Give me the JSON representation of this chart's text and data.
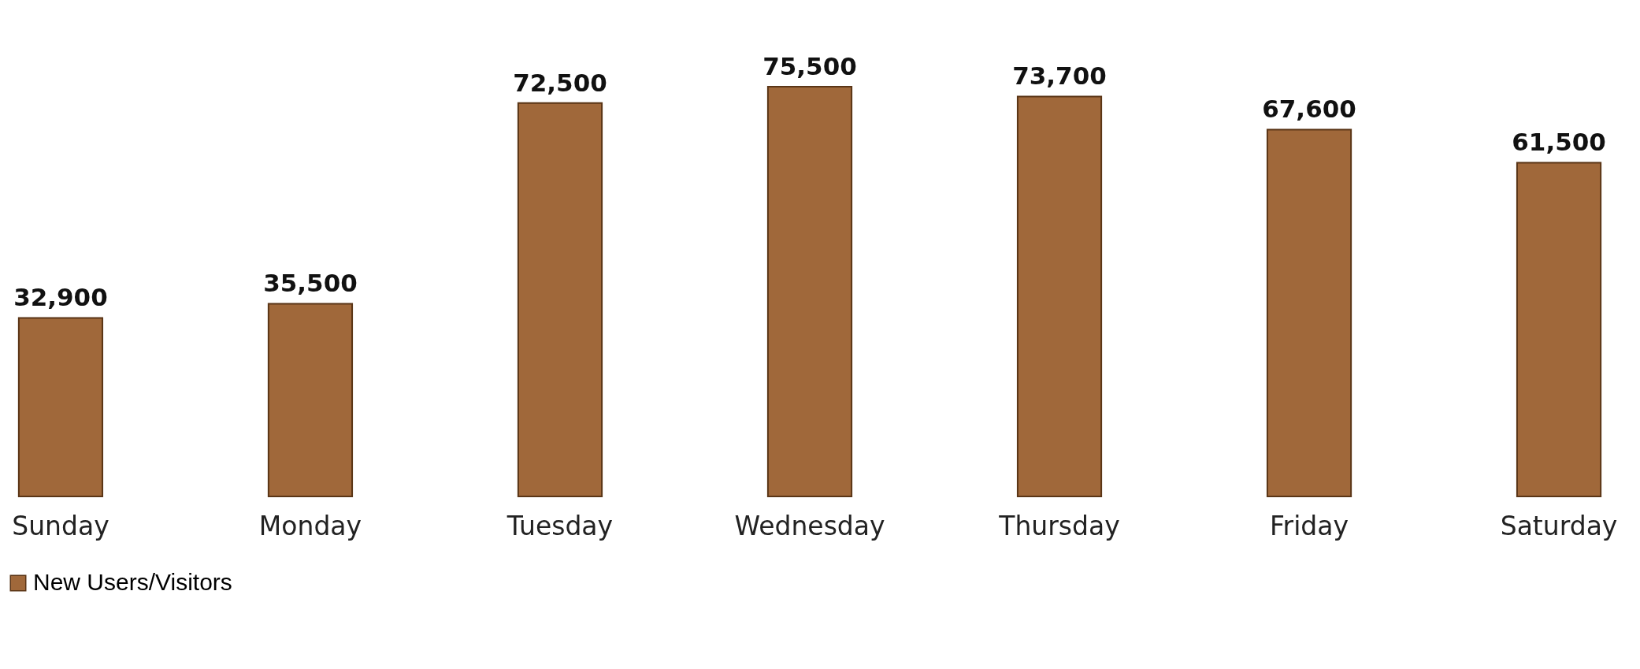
{
  "chart_data": {
    "type": "bar",
    "categories": [
      "Sunday",
      "Monday",
      "Tuesday",
      "Wednesday",
      "Thursday",
      "Friday",
      "Saturday"
    ],
    "series": [
      {
        "name": "New Users/Visitors",
        "color": "#a0683a",
        "values": [
          32900,
          35500,
          72500,
          75500,
          73700,
          67600,
          61500
        ],
        "value_labels": [
          "32,900",
          "35,500",
          "72,500",
          "75,500",
          "73,700",
          "67,600",
          "61,500"
        ]
      }
    ],
    "legend": "bottom",
    "tick_labels": "x"
  }
}
